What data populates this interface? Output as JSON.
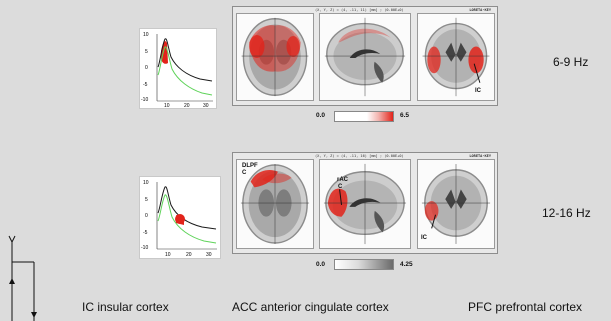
{
  "rows": [
    {
      "frequency": "6-9 Hz",
      "spectrum_ticks_y": [
        "10",
        "5",
        "0",
        "-5",
        "-10"
      ],
      "spectrum_ticks_x": [
        "10",
        "20",
        "30"
      ],
      "header_left": "(X, Y, Z) = (4, -11, 11) [mm] ; (0.00E+0)",
      "header_right": "LORETA-KEY",
      "colorbar_min": "0.0",
      "colorbar_max": "6.5",
      "annotations": [
        "IC"
      ],
      "highlight_color": "#e2231a"
    },
    {
      "frequency": "12-16 Hz",
      "spectrum_ticks_y": [
        "10",
        "5",
        "0",
        "-5",
        "-10"
      ],
      "spectrum_ticks_x": [
        "10",
        "20",
        "30"
      ],
      "header_left": "(X, Y, Z) = (4, -11, 16) [mm] ; (0.00E+0)",
      "header_right": "LORETA-KEY",
      "colorbar_min": "0.0",
      "colorbar_max": "4.25",
      "annotations": [
        "DLPF",
        "C",
        "rAC",
        "C",
        "IC"
      ],
      "highlight_color": "#e2231a"
    }
  ],
  "legend": [
    "IC insular cortex",
    "ACC anterior cingulate cortex",
    "PFC prefrontal cortex"
  ],
  "colors": {
    "spectrum_black": "#1a1a1a",
    "spectrum_green": "#5fd35a",
    "activation_red": "#e2231a"
  }
}
